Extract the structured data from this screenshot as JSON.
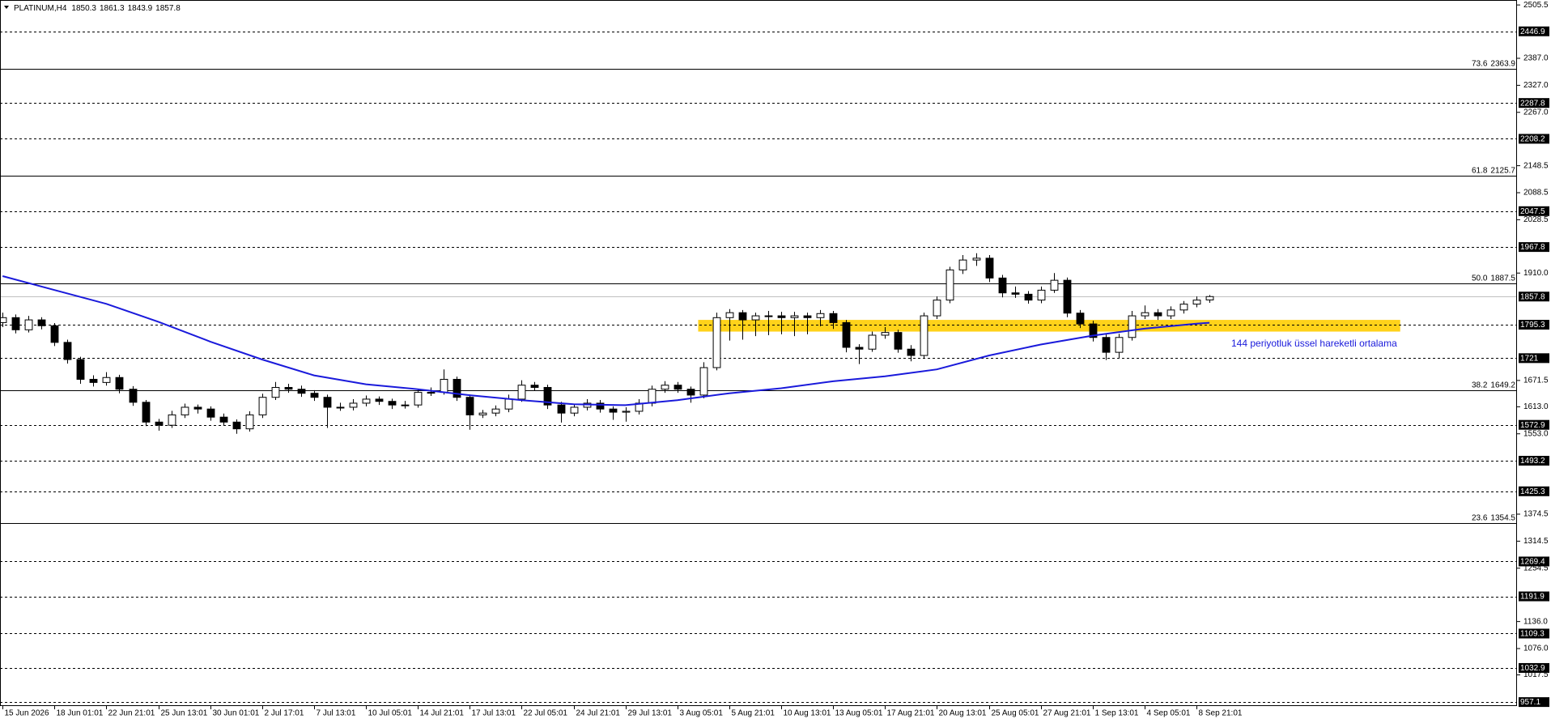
{
  "chart_data": {
    "type": "candlestick",
    "symbol": "PLATINUM,H4",
    "header_values": [
      1850.3,
      1861.3,
      1843.9,
      1857.8
    ],
    "ylim": [
      948.3,
      2516.5
    ],
    "xlim": [
      -0.2,
      116.7
    ],
    "yticks": [
      2505.5,
      {
        "value": 2387,
        "label": "2387.0"
      },
      {
        "value": 2327,
        "label": "2327.0"
      },
      {
        "value": 2267,
        "label": "2267.0"
      },
      2148.5,
      2088.5,
      2028.5,
      {
        "value": 1910,
        "label": "1910.0"
      },
      1671.5,
      {
        "value": 1613,
        "label": "1613.0"
      },
      {
        "value": 1553,
        "label": "1553.0"
      },
      1374.5,
      1314.5,
      1254.5,
      {
        "value": 1136,
        "label": "1136.0"
      },
      {
        "value": 1076,
        "label": "1076.0"
      },
      1017.5
    ],
    "levels": [
      2446.9,
      2287.8,
      2208.2,
      2047.5,
      1967.8,
      1795.3,
      1721.0,
      1572.9,
      1493.2,
      1425.3,
      1269.4,
      1191.9,
      1109.3,
      1032.9,
      957.1
    ],
    "current_price": 1857.8,
    "fib": [
      {
        "ratio": 73.6,
        "price": 2363.9
      },
      {
        "ratio": 61.8,
        "price": 2125.7
      },
      {
        "ratio": {
          "value": 50,
          "label": "50.0"
        },
        "price": 1887.5
      },
      {
        "ratio": 38.2,
        "price": 1649.2
      },
      {
        "ratio": 23.6,
        "price": 1354.5
      }
    ],
    "zone": {
      "x": [
        53.6,
        107.7
      ],
      "price": [
        1780,
        1806
      ],
      "color": "#ffd21a"
    },
    "annotation": "144 periyotluk üssel hareketli ortalama",
    "ma": {
      "color": "#1a1adb",
      "x": [
        0,
        4,
        8,
        12,
        16,
        20,
        24,
        28,
        32,
        36,
        40,
        44,
        48,
        52,
        56,
        60,
        64,
        68,
        72,
        76,
        80,
        84,
        88,
        92,
        93
      ],
      "values": [
        1903.3,
        1872.4,
        1841.6,
        1801.9,
        1757.8,
        1718.1,
        1682.8,
        1663.0,
        1652.0,
        1638.7,
        1627.7,
        1618.8,
        1616.6,
        1627.7,
        1643.1,
        1654.1,
        1669.6,
        1680.6,
        1696.0,
        1726.9,
        1751.2,
        1771.0,
        1786.5,
        1797.5,
        1799.7
      ]
    },
    "xticks": [
      {
        "value": 0,
        "label": "15 Jun 2026"
      },
      {
        "value": 4,
        "label": "18 Jun 01:01"
      },
      {
        "value": 8,
        "label": "22 Jun 21:01"
      },
      {
        "value": 12,
        "label": "25 Jun 13:01"
      },
      {
        "value": 16,
        "label": "30 Jun 01:01"
      },
      {
        "value": 20,
        "label": "2 Jul 17:01"
      },
      {
        "value": 24,
        "label": "7 Jul 13:01"
      },
      {
        "value": 28,
        "label": "10 Jul 05:01"
      },
      {
        "value": 32,
        "label": "14 Jul 21:01"
      },
      {
        "value": 36,
        "label": "17 Jul 13:01"
      },
      {
        "value": 40,
        "label": "22 Jul 05:01"
      },
      {
        "value": 44,
        "label": "24 Jul 21:01"
      },
      {
        "value": 48,
        "label": "29 Jul 13:01"
      },
      {
        "value": 52,
        "label": "3 Aug 05:01"
      },
      {
        "value": 56,
        "label": "5 Aug 21:01"
      },
      {
        "value": 60,
        "label": "10 Aug 13:01"
      },
      {
        "value": 64,
        "label": "13 Aug 05:01"
      },
      {
        "value": 68,
        "label": "17 Aug 21:01"
      },
      {
        "value": 72,
        "label": "20 Aug 13:01"
      },
      {
        "value": 76,
        "label": "25 Aug 05:01"
      },
      {
        "value": 80,
        "label": "27 Aug 21:01"
      },
      {
        "value": 84,
        "label": "1 Sep 13:01"
      },
      {
        "value": 88,
        "label": "4 Sep 05:01"
      },
      {
        "value": 92,
        "label": "8 Sep 21:01"
      }
    ],
    "ohlc": [
      [
        1800,
        1822,
        1790,
        1811
      ],
      [
        1811,
        1818,
        1776,
        1784
      ],
      [
        1784,
        1815,
        1778,
        1806
      ],
      [
        1806,
        1812,
        1785,
        1793
      ],
      [
        1793,
        1799,
        1748,
        1756
      ],
      [
        1756,
        1762,
        1709,
        1718
      ],
      [
        1718,
        1724,
        1664,
        1674
      ],
      [
        1674,
        1683,
        1658,
        1667
      ],
      [
        1667,
        1690,
        1660,
        1678
      ],
      [
        1678,
        1684,
        1643,
        1652
      ],
      [
        1652,
        1659,
        1615,
        1623
      ],
      [
        1623,
        1628,
        1570,
        1579
      ],
      [
        1579,
        1586,
        1560,
        1572
      ],
      [
        1572,
        1604,
        1566,
        1595
      ],
      [
        1595,
        1620,
        1588,
        1612
      ],
      [
        1612,
        1618,
        1598,
        1608
      ],
      [
        1608,
        1614,
        1582,
        1590
      ],
      [
        1590,
        1598,
        1571,
        1579
      ],
      [
        1579,
        1585,
        1553,
        1564
      ],
      [
        1564,
        1603,
        1558,
        1595
      ],
      [
        1595,
        1642,
        1588,
        1634
      ],
      [
        1634,
        1668,
        1628,
        1656
      ],
      [
        1656,
        1664,
        1644,
        1652
      ],
      [
        1652,
        1660,
        1635,
        1643
      ],
      [
        1643,
        1650,
        1626,
        1634
      ],
      [
        1634,
        1640,
        1566,
        1612
      ],
      [
        1612,
        1622,
        1604,
        1612
      ],
      [
        1612,
        1630,
        1605,
        1621
      ],
      [
        1621,
        1638,
        1614,
        1630
      ],
      [
        1630,
        1636,
        1617,
        1625
      ],
      [
        1625,
        1631,
        1608,
        1617
      ],
      [
        1617,
        1626,
        1609,
        1617
      ],
      [
        1617,
        1653,
        1611,
        1645
      ],
      [
        1645,
        1656,
        1637,
        1645
      ],
      [
        1645,
        1696,
        1640,
        1674
      ],
      [
        1674,
        1680,
        1626,
        1634
      ],
      [
        1634,
        1640,
        1562,
        1595
      ],
      [
        1595,
        1606,
        1588,
        1599
      ],
      [
        1599,
        1616,
        1592,
        1608
      ],
      [
        1608,
        1640,
        1601,
        1630
      ],
      [
        1630,
        1672,
        1624,
        1661
      ],
      [
        1661,
        1668,
        1648,
        1656
      ],
      [
        1656,
        1662,
        1608,
        1617
      ],
      [
        1617,
        1624,
        1578,
        1599
      ],
      [
        1599,
        1620,
        1592,
        1612
      ],
      [
        1612,
        1630,
        1605,
        1621
      ],
      [
        1621,
        1628,
        1600,
        1608
      ],
      [
        1608,
        1614,
        1584,
        1601
      ],
      [
        1601,
        1612,
        1580,
        1603
      ],
      [
        1603,
        1630,
        1596,
        1621
      ],
      [
        1621,
        1660,
        1614,
        1652
      ],
      [
        1652,
        1670,
        1644,
        1661
      ],
      [
        1661,
        1668,
        1644,
        1652
      ],
      [
        1652,
        1658,
        1622,
        1639
      ],
      [
        1639,
        1712,
        1632,
        1700
      ],
      [
        1700,
        1822,
        1694,
        1811
      ],
      [
        1811,
        1830,
        1760,
        1822
      ],
      [
        1822,
        1828,
        1762,
        1806
      ],
      [
        1806,
        1822,
        1770,
        1815
      ],
      [
        1815,
        1826,
        1772,
        1815
      ],
      [
        1815,
        1824,
        1774,
        1811
      ],
      [
        1811,
        1824,
        1770,
        1815
      ],
      [
        1815,
        1822,
        1774,
        1811
      ],
      [
        1811,
        1828,
        1792,
        1820
      ],
      [
        1820,
        1826,
        1786,
        1800
      ],
      [
        1800,
        1806,
        1734,
        1745
      ],
      [
        1745,
        1752,
        1708,
        1741
      ],
      [
        1741,
        1780,
        1735,
        1772
      ],
      [
        1772,
        1790,
        1764,
        1778
      ],
      [
        1778,
        1784,
        1733,
        1741
      ],
      [
        1741,
        1750,
        1714,
        1727
      ],
      [
        1727,
        1822,
        1720,
        1815
      ],
      [
        1815,
        1858,
        1808,
        1850
      ],
      [
        1850,
        1924,
        1843,
        1917
      ],
      [
        1917,
        1950,
        1908,
        1939
      ],
      [
        1939,
        1954,
        1926,
        1943
      ],
      [
        1943,
        1950,
        1890,
        1899
      ],
      [
        1899,
        1906,
        1856,
        1866
      ],
      [
        1866,
        1880,
        1855,
        1863
      ],
      [
        1863,
        1870,
        1842,
        1850
      ],
      [
        1850,
        1880,
        1843,
        1872
      ],
      [
        1872,
        1910,
        1866,
        1894
      ],
      [
        1894,
        1900,
        1812,
        1821
      ],
      [
        1821,
        1828,
        1788,
        1797
      ],
      [
        1797,
        1804,
        1758,
        1767
      ],
      [
        1767,
        1775,
        1717,
        1734
      ],
      [
        1734,
        1775,
        1720,
        1767
      ],
      [
        1767,
        1826,
        1760,
        1815
      ],
      [
        1815,
        1838,
        1808,
        1822
      ],
      [
        1822,
        1830,
        1806,
        1815
      ],
      [
        1815,
        1836,
        1808,
        1828
      ],
      [
        1828,
        1848,
        1820,
        1841
      ],
      [
        1841,
        1858,
        1834,
        1850
      ],
      [
        1850.3,
        1861.3,
        1843.9,
        1857.8
      ]
    ]
  }
}
